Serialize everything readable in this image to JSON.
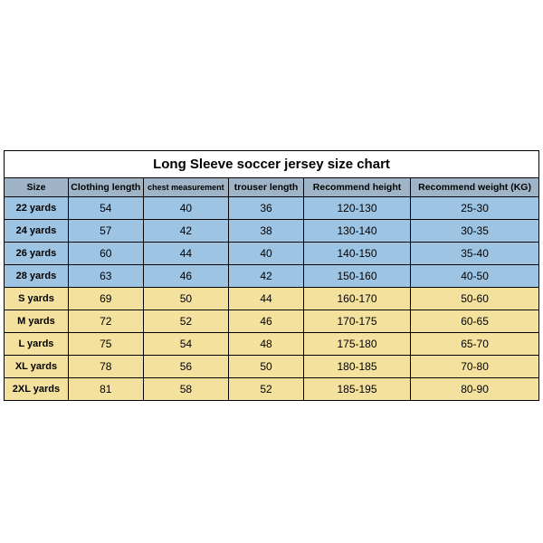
{
  "title": "Long Sleeve soccer jersey size chart",
  "columns": [
    "Size",
    "Clothing length",
    "chest measurement",
    "trouser length",
    "Recommend height",
    "Recommend weight (KG)"
  ],
  "rows": [
    {
      "group": "kid",
      "cells": [
        "22 yards",
        "54",
        "40",
        "36",
        "120-130",
        "25-30"
      ]
    },
    {
      "group": "kid",
      "cells": [
        "24 yards",
        "57",
        "42",
        "38",
        "130-140",
        "30-35"
      ]
    },
    {
      "group": "kid",
      "cells": [
        "26 yards",
        "60",
        "44",
        "40",
        "140-150",
        "35-40"
      ]
    },
    {
      "group": "kid",
      "cells": [
        "28 yards",
        "63",
        "46",
        "42",
        "150-160",
        "40-50"
      ]
    },
    {
      "group": "adult",
      "cells": [
        "S yards",
        "69",
        "50",
        "44",
        "160-170",
        "50-60"
      ]
    },
    {
      "group": "adult",
      "cells": [
        "M yards",
        "72",
        "52",
        "46",
        "170-175",
        "60-65"
      ]
    },
    {
      "group": "adult",
      "cells": [
        "L yards",
        "75",
        "54",
        "48",
        "175-180",
        "65-70"
      ]
    },
    {
      "group": "adult",
      "cells": [
        "XL yards",
        "78",
        "56",
        "50",
        "180-185",
        "70-80"
      ]
    },
    {
      "group": "adult",
      "cells": [
        "2XL yards",
        "81",
        "58",
        "52",
        "185-195",
        "80-90"
      ]
    }
  ],
  "colors": {
    "header_bg": "#9fb4c6",
    "kid_bg": "#9ec4e4",
    "adult_bg": "#f4e19e",
    "border": "#000000",
    "page_bg": "#ffffff"
  }
}
